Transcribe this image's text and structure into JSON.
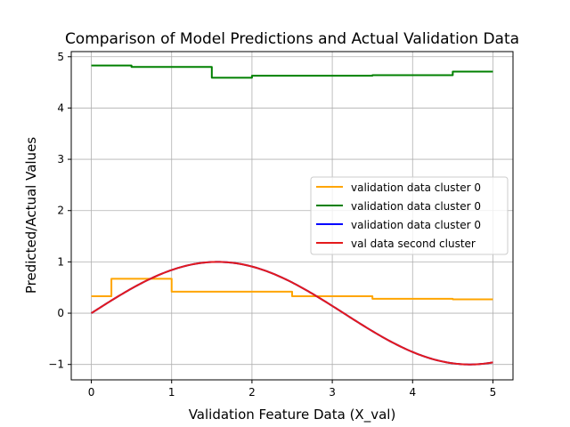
{
  "chart_data": {
    "type": "line",
    "title": "Comparison of Model Predictions and Actual Validation Data",
    "xlabel": "Validation Feature Data (X_val)",
    "ylabel": "Predicted/Actual Values",
    "xlim": [
      -0.25,
      5.25
    ],
    "ylim": [
      -1.3,
      5.1
    ],
    "xticks": [
      0,
      1,
      2,
      3,
      4,
      5
    ],
    "yticks": [
      -1,
      0,
      1,
      2,
      3,
      4,
      5
    ],
    "xtick_labels": [
      "0",
      "1",
      "2",
      "3",
      "4",
      "5"
    ],
    "ytick_labels": [
      "−1",
      "0",
      "1",
      "2",
      "3",
      "4",
      "5"
    ],
    "grid": true,
    "legend_position": "center-right",
    "series": [
      {
        "name": "validation data cluster 0",
        "color": "#ffa500",
        "step": true,
        "x": [
          0,
          0.25,
          1.0,
          2.5,
          3.5,
          4.5,
          5.0
        ],
        "y": [
          0.33,
          0.67,
          0.42,
          0.33,
          0.28,
          0.27,
          0.27
        ]
      },
      {
        "name": "validation data cluster 0",
        "color": "#008000",
        "step": true,
        "x": [
          0,
          0.5,
          1.5,
          2.0,
          3.5,
          4.5,
          5.0
        ],
        "y": [
          4.83,
          4.8,
          4.59,
          4.63,
          4.64,
          4.71,
          4.71
        ]
      },
      {
        "name": "validation data cluster 0",
        "color": "#0000ff",
        "function": "sin",
        "x_range": [
          0,
          5
        ]
      },
      {
        "name": "val data second cluster",
        "color": "#e41a1c",
        "function": "sin",
        "x_range": [
          0,
          5
        ]
      }
    ]
  }
}
